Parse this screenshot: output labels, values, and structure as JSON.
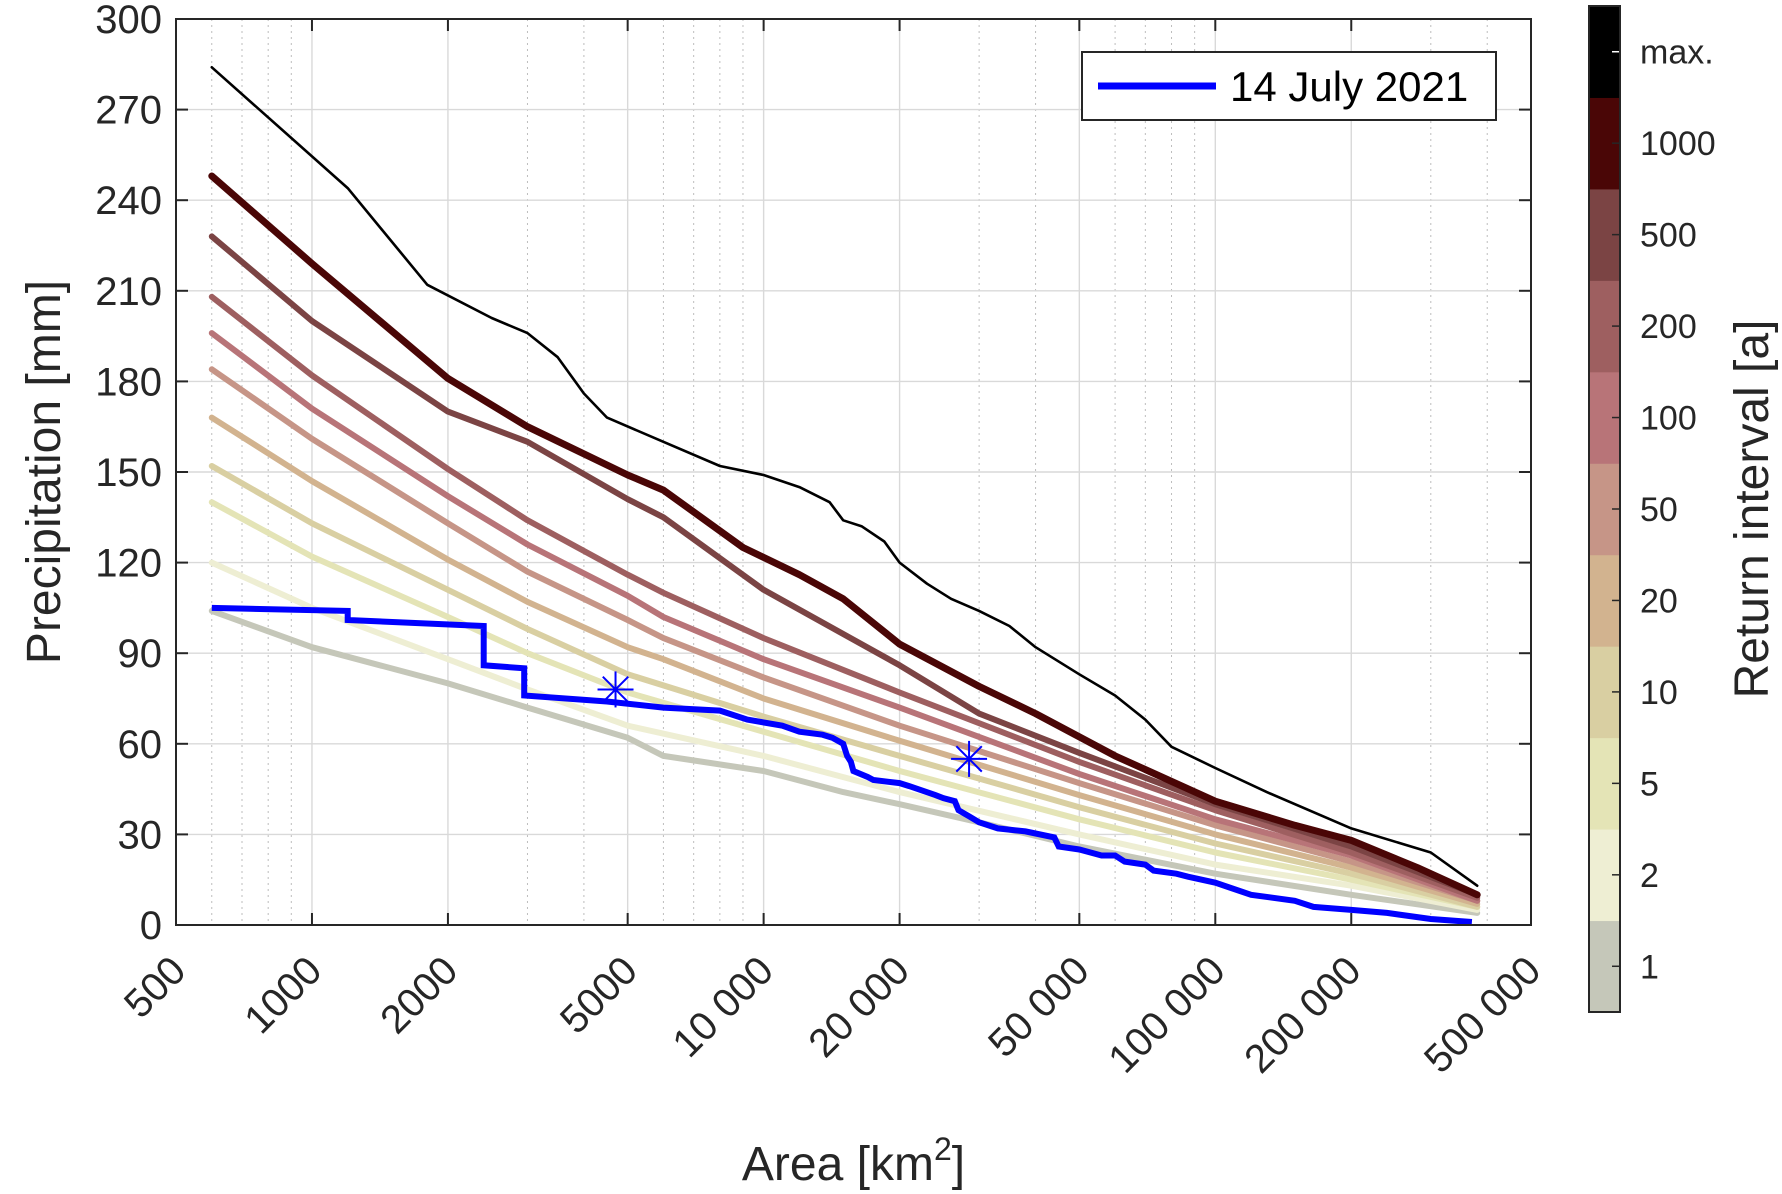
{
  "chart_data": {
    "type": "line",
    "xscale": "log",
    "xlim": [
      500,
      500000
    ],
    "ylim": [
      0,
      300
    ],
    "xlabel_main": "Area [km",
    "xlabel_sup": "2",
    "xlabel_end": "]",
    "ylabel": "Precipitation [mm]",
    "grid": true,
    "x_ticks": [
      500,
      1000,
      2000,
      5000,
      10000,
      20000,
      50000,
      100000,
      200000,
      500000
    ],
    "x_tick_labels": [
      "500",
      "1000",
      "2000",
      "5000",
      "10 000",
      "20 000",
      "50 000",
      "100 000",
      "200 000",
      "500 000"
    ],
    "y_ticks": [
      0,
      30,
      60,
      90,
      120,
      150,
      180,
      210,
      240,
      270,
      300
    ],
    "y_tick_labels": [
      "0",
      "30",
      "60",
      "90",
      "120",
      "150",
      "180",
      "210",
      "240",
      "270",
      "300"
    ],
    "legend": {
      "position": "top-right",
      "entries": [
        {
          "label": "14 July 2021",
          "color": "#0000ff"
        }
      ]
    },
    "colorbar": {
      "title": "Return interval [a]",
      "labels": [
        "1",
        "2",
        "5",
        "10",
        "20",
        "50",
        "100",
        "200",
        "500",
        "1000",
        "max."
      ],
      "colors": [
        "#c5c7b9",
        "#eeeed3",
        "#e4e4b6",
        "#d9cfa2",
        "#d2b38f",
        "#c69587",
        "#b87478",
        "#9e5f60",
        "#7b4444",
        "#4a0606",
        "#000000"
      ]
    },
    "return_period_series": [
      {
        "name": "1",
        "color": "#c5c7b9",
        "x": [
          600,
          1000,
          2000,
          3000,
          5000,
          6000,
          10000,
          15000,
          20000,
          30000,
          50000,
          100000,
          200000,
          380000
        ],
        "y": [
          104,
          92,
          80,
          72,
          62,
          56,
          51,
          44,
          40,
          34,
          26,
          17,
          10,
          4
        ]
      },
      {
        "name": "2",
        "color": "#eeeed3",
        "x": [
          600,
          1000,
          2000,
          3000,
          5000,
          10000,
          20000,
          50000,
          100000,
          200000,
          380000
        ],
        "y": [
          120,
          105,
          88,
          78,
          66,
          56,
          44,
          30,
          20,
          13,
          5
        ]
      },
      {
        "name": "5",
        "color": "#e4e4b6",
        "x": [
          600,
          1000,
          2000,
          3000,
          5000,
          10000,
          20000,
          50000,
          100000,
          200000,
          380000
        ],
        "y": [
          140,
          122,
          102,
          90,
          77,
          64,
          51,
          35,
          24,
          15,
          6
        ]
      },
      {
        "name": "10",
        "color": "#d9cfa2",
        "x": [
          600,
          1000,
          2000,
          3000,
          5000,
          10000,
          20000,
          50000,
          100000,
          200000,
          380000
        ],
        "y": [
          152,
          133,
          111,
          98,
          83,
          69,
          56,
          39,
          27,
          17,
          6
        ]
      },
      {
        "name": "20",
        "color": "#d2b38f",
        "x": [
          600,
          1000,
          2000,
          3000,
          5000,
          6000,
          10000,
          20000,
          50000,
          100000,
          200000,
          380000
        ],
        "y": [
          168,
          147,
          121,
          107,
          92,
          88,
          75,
          61,
          43,
          30,
          19,
          7
        ]
      },
      {
        "name": "50",
        "color": "#c69587",
        "x": [
          600,
          1000,
          2000,
          3000,
          5000,
          6000,
          10000,
          20000,
          50000,
          100000,
          200000,
          380000
        ],
        "y": [
          184,
          161,
          133,
          117,
          101,
          95,
          82,
          66,
          47,
          33,
          21,
          8
        ]
      },
      {
        "name": "100",
        "color": "#b87478",
        "x": [
          600,
          1000,
          2000,
          3000,
          5000,
          6000,
          10000,
          20000,
          50000,
          100000,
          200000,
          380000
        ],
        "y": [
          196,
          171,
          142,
          126,
          109,
          102,
          88,
          72,
          50,
          35,
          23,
          8
        ]
      },
      {
        "name": "200",
        "color": "#9e5f60",
        "x": [
          600,
          1000,
          2000,
          3000,
          5000,
          6000,
          10000,
          20000,
          50000,
          100000,
          200000,
          380000
        ],
        "y": [
          208,
          182,
          151,
          134,
          116,
          110,
          95,
          77,
          54,
          38,
          24,
          9
        ]
      },
      {
        "name": "500",
        "color": "#7b4444",
        "x": [
          600,
          1000,
          2000,
          3000,
          5000,
          6000,
          10000,
          20000,
          30000,
          50000,
          100000,
          200000,
          380000
        ],
        "y": [
          228,
          200,
          170,
          160,
          141,
          135,
          111,
          86,
          70,
          57,
          40,
          26,
          10
        ]
      },
      {
        "name": "1000",
        "color": "#4a0606",
        "x": [
          600,
          1000,
          2000,
          3000,
          5000,
          6000,
          9000,
          12000,
          15000,
          20000,
          30000,
          40000,
          60000,
          100000,
          150000,
          200000,
          280000,
          380000
        ],
        "y": [
          248,
          219,
          181,
          165,
          149,
          144,
          125,
          116,
          108,
          93,
          79,
          70,
          56,
          41,
          33,
          28,
          19,
          10
        ]
      },
      {
        "name": "max.",
        "color": "#000000",
        "x": [
          600,
          1200,
          1800,
          2500,
          3000,
          3500,
          4000,
          4500,
          6000,
          8000,
          10000,
          12000,
          14000,
          15000,
          16500,
          18500,
          20000,
          23000,
          26000,
          30000,
          35000,
          40000,
          50000,
          60000,
          70000,
          80000,
          100000,
          130000,
          200000,
          300000,
          380000
        ],
        "y": [
          284,
          244,
          212,
          201,
          196,
          188,
          176,
          168,
          160,
          152,
          149,
          145,
          140,
          134,
          132,
          127,
          120,
          113,
          108,
          104,
          99,
          92,
          83,
          76,
          68,
          59,
          52,
          44,
          32,
          24,
          13
        ]
      }
    ],
    "series": [
      {
        "name": "14 July 2021",
        "color": "#0000ff",
        "x": [
          600,
          1200,
          1200,
          2400,
          2400,
          2950,
          2950,
          4500,
          6000,
          8000,
          9200,
          11000,
          12000,
          13500,
          14200,
          15000,
          15300,
          15600,
          15800,
          17000,
          17500,
          20000,
          21000,
          24000,
          25000,
          26500,
          27000,
          28500,
          30000,
          33000,
          38000,
          44000,
          45000,
          50000,
          56000,
          60000,
          63000,
          70000,
          73000,
          82000,
          87000,
          100000,
          120000,
          150000,
          165000,
          200000,
          240000,
          300000,
          370000
        ],
        "y": [
          105,
          104,
          101,
          99,
          86,
          85,
          76,
          74,
          72,
          71,
          68,
          66,
          64,
          63,
          62,
          60,
          56,
          54,
          51,
          49,
          48,
          47,
          46,
          43,
          42,
          41,
          38,
          36,
          34,
          32,
          31,
          29,
          26,
          25,
          23,
          23,
          21,
          20,
          18,
          17,
          16,
          14,
          10,
          8,
          6,
          5,
          4,
          2,
          1
        ]
      }
    ],
    "markers": [
      {
        "symbol": "asterisk",
        "x": 4700,
        "y": 78,
        "color": "#0000ff"
      },
      {
        "symbol": "asterisk",
        "x": 28500,
        "y": 55,
        "color": "#0000ff"
      }
    ]
  }
}
